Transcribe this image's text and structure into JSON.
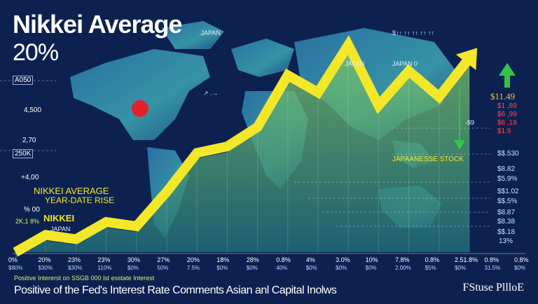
{
  "header": {
    "title": "Nikkei Average",
    "value": "20%"
  },
  "chart_data": {
    "type": "line",
    "series": [
      {
        "values": [
          0,
          8,
          6,
          14,
          12,
          28,
          46,
          49,
          58,
          82,
          74,
          96,
          68,
          84,
          72,
          90
        ]
      }
    ],
    "ylim": [
      0,
      100
    ],
    "grid": false,
    "title": "Nikkei Average"
  },
  "y_axis_labels": [
    "A050",
    "4,500",
    "2,70",
    "250K",
    "+4,00",
    "% 00"
  ],
  "left_labels": {
    "line1": "NIKKEI AVERAGE",
    "line2": "YEAR-DATE RISE",
    "nikkei": "NIKKEI",
    "value": "2K,1 8%",
    "sub": "JAPAN"
  },
  "map_labels": {
    "japan_top": ".JAPAN",
    "japan_mid": "JAPAN",
    "japan_right": "JAPAN 0",
    "arrow_text": "↗ .→",
    "top_right": "$↑↑ ↑↑ ↑↑ ↑↑ ↑↑",
    "stock": "JAPAANESSE STOCK"
  },
  "right_values": {
    "gold": "$11.49",
    "red1": "$1 ,89",
    "red2": "$6 ,99",
    "red3": "$6 ,19",
    "red4": "$1.9",
    "mid": "-$9",
    "v1": "$$.530",
    "v2": "$8.82",
    "v3": "$5.9%",
    "v4": "$$1.02",
    "v5": "$$.5%",
    "v6": "$8.87",
    "v7": "$8.38",
    "v8": "$$.18",
    "v9": "13%"
  },
  "x_labels_top": [
    "0%",
    "20%",
    "23%",
    "23%",
    "30%",
    "27%",
    "20%",
    "18%",
    "28%",
    "0.8%",
    "4%",
    "3.0%",
    "10%",
    "7.8%",
    "0.8%",
    "2.51.8%",
    "0.8%",
    "0.8%"
  ],
  "x_labels_bottom": [
    "$80%",
    "$30%",
    "$30%",
    "110%",
    "$0%",
    "50%",
    "7.5%",
    "$0%",
    "$0%",
    "40%",
    "$0%",
    "$0%",
    "$0%",
    "2.00%",
    "$5%",
    "$0%",
    "31.5%",
    "$0%"
  ],
  "captions": {
    "line1": "Positive Intererst on SSGB 000 lst esstate Interest",
    "line2": "Positive of the Fed's Interest Rate Comments Asian anl Capital Inolws"
  },
  "brand": "FStuse PllloE",
  "colors": {
    "background": "#0d2150",
    "arrow": "#f3e72a",
    "map": "#35a3b8",
    "area": "#3aa67a",
    "green_arrow": "#34c24a",
    "dot": "#e4212b"
  }
}
